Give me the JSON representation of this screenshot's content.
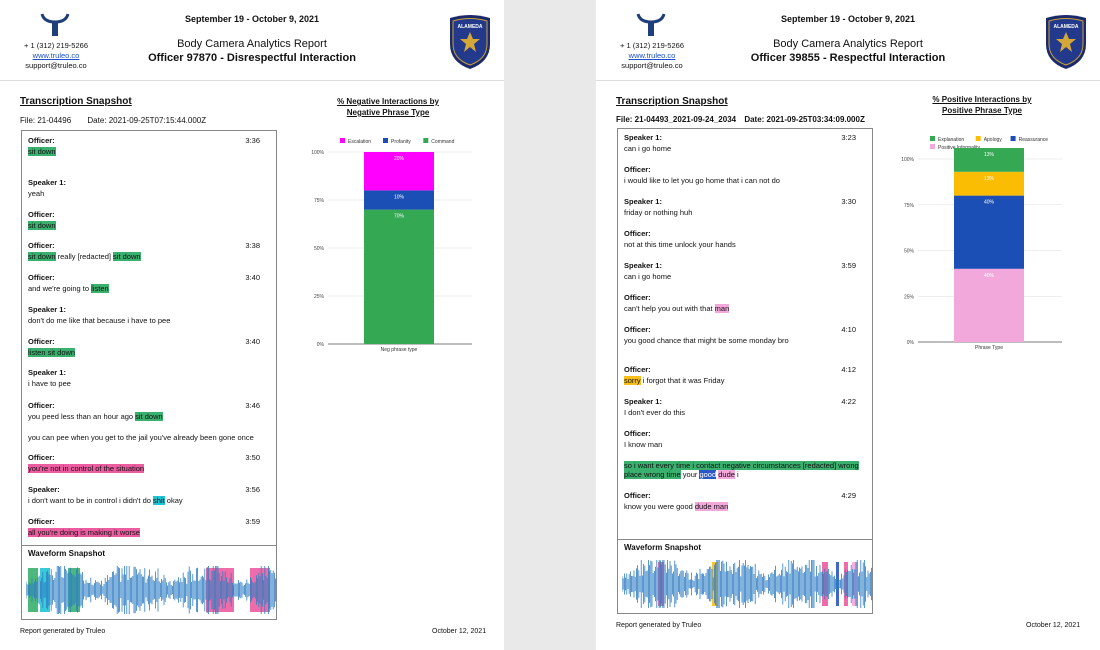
{
  "colors": {
    "green": "#3ab06e",
    "pink": "#ec5ca0",
    "cyan": "#22c4d4",
    "yellow": "#f7bf1a",
    "blue": "#2a57c4",
    "lightpink": "#f3a8dc",
    "magenta": "#ff00ff",
    "navyblue": "#1c4fb5",
    "chartgreen": "#34a853"
  },
  "icons": {
    "logo": "truleo-logo",
    "badge": "alameda-police-badge"
  },
  "pages": [
    {
      "contact": {
        "phone": "+ 1 (312) 219-5266",
        "website": "www.truleo.co",
        "email": "support@truleo.co"
      },
      "date_range": "September 19 - October 9, 2021",
      "report_title": "Body Camera Analytics Report",
      "report_subtitle": "Officer 97870 - Disrespectful Interaction",
      "badge_text": "ALAMEDA POLICE",
      "transcription_title": "Transcription Snapshot",
      "file_label": "File: 21-04496",
      "date_label": "Date: 2021-09-25T07:15:44.000Z",
      "entries": [
        {
          "speaker": "Officer:",
          "time": "3:36",
          "segments": [
            {
              "text": "sit down",
              "hl": "green"
            }
          ]
        },
        {
          "speaker": "Speaker 1:",
          "time": "",
          "segments": [
            {
              "text": "yeah",
              "hl": ""
            }
          ]
        },
        {
          "speaker": "Officer:",
          "time": "",
          "segments": [
            {
              "text": "sit down",
              "hl": "green"
            }
          ]
        },
        {
          "speaker": "Officer:",
          "time": "3:38",
          "segments": [
            {
              "text": "sit down",
              "hl": "green"
            },
            {
              "text": " really [redacted] ",
              "hl": ""
            },
            {
              "text": "sit down",
              "hl": "green"
            }
          ]
        },
        {
          "speaker": "Officer:",
          "time": "3:40",
          "segments": [
            {
              "text": "and we're going to ",
              "hl": ""
            },
            {
              "text": "listen",
              "hl": "green"
            }
          ]
        },
        {
          "speaker": "Speaker 1:",
          "time": "",
          "segments": [
            {
              "text": "don't do me like that because i have to pee",
              "hl": ""
            }
          ]
        },
        {
          "speaker": "Officer:",
          "time": "3:40",
          "segments": [
            {
              "text": "listen sit down",
              "hl": "green"
            }
          ]
        },
        {
          "speaker": "Speaker 1:",
          "time": "",
          "segments": [
            {
              "text": "i have to pee",
              "hl": ""
            }
          ]
        },
        {
          "speaker": "Officer:",
          "time": "3:46",
          "segments": [
            {
              "text": "you peed less than an hour ago ",
              "hl": ""
            },
            {
              "text": "sit down",
              "hl": "green"
            }
          ],
          "extra": "you can pee when you get to the jail you've already been gone once"
        },
        {
          "speaker": "Officer:",
          "time": "3:50",
          "segments": [
            {
              "text": "you're not in control of the situation",
              "hl": "pink"
            }
          ]
        },
        {
          "speaker": "Speaker:",
          "time": "3:56",
          "segments": [
            {
              "text": "i don't want to be in control i didn't do ",
              "hl": ""
            },
            {
              "text": "shit",
              "hl": "cyan"
            },
            {
              "text": " okay",
              "hl": ""
            }
          ]
        },
        {
          "speaker": "Officer:",
          "time": "3:59",
          "segments": [
            {
              "text": "all you're doing is making it worse",
              "hl": "pink"
            }
          ]
        }
      ],
      "waveform_title": "Waveform Snapshot",
      "chart_title_line1": "% Negative Interactions by",
      "chart_title_line2": "Negative Phrase Type",
      "footer_left": "Report generated by Truleo",
      "footer_right": "October 12, 2021"
    },
    {
      "contact": {
        "phone": "+ 1 (312) 219-5266",
        "website": "www.truleo.co",
        "email": "support@truleo.co"
      },
      "date_range": "September 19 - October 9, 2021",
      "report_title": "Body Camera Analytics Report",
      "report_subtitle": "Officer 39855 - Respectful Interaction",
      "badge_text": "ALAMEDA POLICE",
      "transcription_title": "Transcription Snapshot",
      "file_label": "File: 21-04493_2021-09-24_2034",
      "date_label": "Date: 2021-09-25T03:34:09.000Z",
      "entries": [
        {
          "speaker": "Speaker 1:",
          "time": "3:23",
          "segments": [
            {
              "text": "can i go home",
              "hl": ""
            }
          ]
        },
        {
          "speaker": "Officer:",
          "time": "",
          "segments": [
            {
              "text": "i would like to let you go home that i can not do",
              "hl": ""
            }
          ]
        },
        {
          "speaker": "Speaker 1:",
          "time": "3:30",
          "segments": [
            {
              "text": "friday or nothing huh",
              "hl": ""
            }
          ]
        },
        {
          "speaker": "Officer:",
          "time": "",
          "segments": [
            {
              "text": "not at this time unlock your hands",
              "hl": ""
            }
          ]
        },
        {
          "speaker": "Speaker 1:",
          "time": "3:59",
          "segments": [
            {
              "text": "can i go home",
              "hl": ""
            }
          ]
        },
        {
          "speaker": "Officer:",
          "time": "",
          "segments": [
            {
              "text": "can't help you out with that ",
              "hl": ""
            },
            {
              "text": "man",
              "hl": "lightpink"
            }
          ]
        },
        {
          "speaker": "Officer:",
          "time": "4:10",
          "segments": [
            {
              "text": "you good chance that might be some monday bro",
              "hl": ""
            }
          ]
        },
        {
          "speaker": "Officer:",
          "time": "4:12",
          "segments": [
            {
              "text": "sorry",
              "hl": "yellow"
            },
            {
              "text": " i forgot that it was Friday",
              "hl": ""
            }
          ]
        },
        {
          "speaker": "Speaker 1:",
          "time": "4:22",
          "segments": [
            {
              "text": "I don't ever do this",
              "hl": ""
            }
          ]
        },
        {
          "speaker": "Officer:",
          "time": "",
          "segments": [
            {
              "text": "I know man",
              "hl": ""
            }
          ],
          "extra_segments": [
            {
              "text": "so i want every time i contact negative circumstances [redacted] wrong place wrong time",
              "hl": "green"
            },
            {
              "text": " your ",
              "hl": ""
            },
            {
              "text": "good",
              "hl": "blue"
            },
            {
              "text": " ",
              "hl": ""
            },
            {
              "text": "dude",
              "hl": "lightpink"
            },
            {
              "text": " i",
              "hl": ""
            }
          ]
        },
        {
          "speaker": "Officer:",
          "time": "4:29",
          "segments": [
            {
              "text": "know you were good ",
              "hl": ""
            },
            {
              "text": "dude man",
              "hl": "lightpink"
            }
          ]
        }
      ],
      "waveform_title": "Waveform Snapshot",
      "chart_title_line1": "% Positive Interactions by",
      "chart_title_line2": "Positive Phrase Type",
      "footer_left": "Report generated by Truleo",
      "footer_right": "October 12, 2021"
    }
  ],
  "chart_data": [
    {
      "type": "bar",
      "title": "% Negative Interactions by Negative Phrase Type",
      "xlabel": "Neg phrase type",
      "categories": [
        "Neg phrase type"
      ],
      "ylim": [
        0,
        100
      ],
      "yticks": [
        "0%",
        "25%",
        "50%",
        "75%",
        "100%"
      ],
      "stacked": true,
      "legend": "top",
      "series": [
        {
          "name": "Escalation",
          "values": [
            20
          ],
          "label": "20%",
          "color": "#ff00ff"
        },
        {
          "name": "Profanity",
          "values": [
            10
          ],
          "label": "10%",
          "color": "#1c4fb5"
        },
        {
          "name": "Command",
          "values": [
            70
          ],
          "label": "70%",
          "color": "#34a853"
        }
      ]
    },
    {
      "type": "bar",
      "title": "% Positive Interactions by Positive Phrase Type",
      "xlabel": "Phrase Type",
      "categories": [
        "Phrase Type"
      ],
      "ylim": [
        0,
        100
      ],
      "yticks": [
        "0%",
        "25%",
        "50%",
        "75%",
        "100%"
      ],
      "stacked": true,
      "legend": "top",
      "series": [
        {
          "name": "Explanation",
          "values": [
            13
          ],
          "label": "13%",
          "color": "#34a853"
        },
        {
          "name": "Apology",
          "values": [
            13
          ],
          "label": "13%",
          "color": "#fbbc04"
        },
        {
          "name": "Reassurance",
          "values": [
            40
          ],
          "label": "40%",
          "color": "#1c4fb5"
        },
        {
          "name": "Positive Informality",
          "values": [
            40
          ],
          "label": "40%",
          "color": "#f3a8dc"
        }
      ]
    }
  ]
}
